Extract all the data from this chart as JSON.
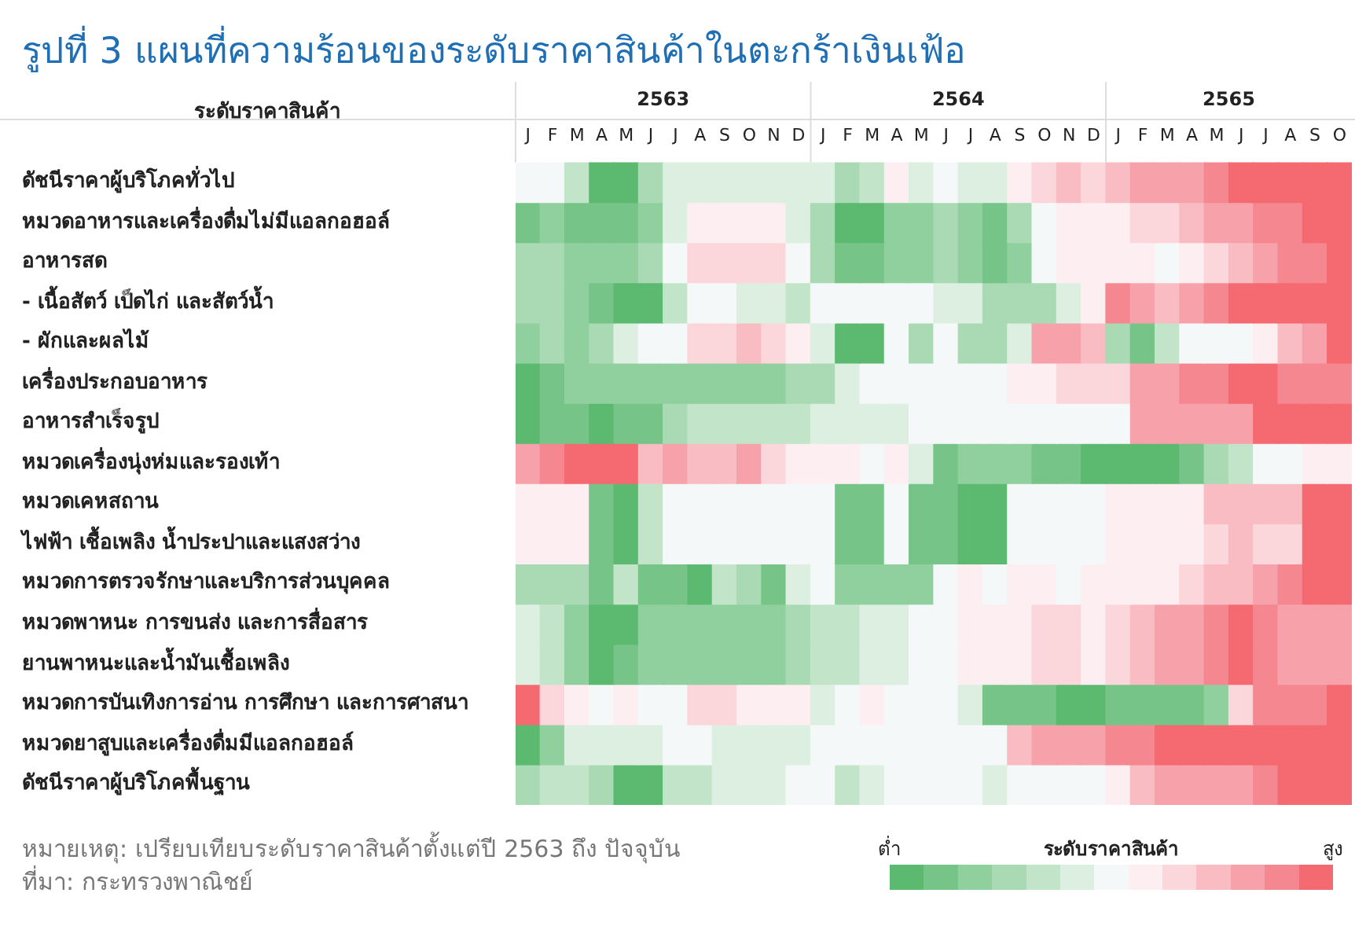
{
  "chart_data": {
    "type": "heatmap",
    "title": "รูปที่ 3 แผนที่ความร้อนของระดับราคาสินค้าในตะกร้าเงินเฟ้อ",
    "ylabel": "ระดับราคาสินค้า",
    "clabel": "ระดับราคาสินค้า",
    "annotations": [
      "2563",
      "2564",
      "2565",
      "หมายเหตุ: เปรียบเทียบระดับราคาสินค้าตั้งแต่ปี 2563 ถึง ปัจจุบัน",
      "ที่มา: กระทรวงพาณิชย์"
    ],
    "categories": [
      "J",
      "F",
      "M",
      "A",
      "M",
      "J",
      "J",
      "A",
      "S",
      "O",
      "N",
      "D",
      "J",
      "F",
      "M",
      "A",
      "M",
      "J",
      "J",
      "A",
      "S",
      "O",
      "N",
      "D",
      "J",
      "F",
      "M",
      "A",
      "M",
      "J",
      "J",
      "A",
      "S",
      "O"
    ],
    "y_categories": [
      "ดัชนีราคาผู้บริโภคทั่วไป",
      "หมวดอาหารและเครื่องดื่มไม่มีแอลกอฮอล์",
      "อาหารสด",
      "- เนื้อสัตว์ เป็ดไก่ และสัตว์น้ำ",
      "- ผักและผลไม้",
      "เครื่องประกอบอาหาร",
      "อาหารสำเร็จรูป",
      "หมวดเครื่องนุ่งห่มและรองเท้า",
      "หมวดเคหสถาน",
      "ไฟฟ้า เชื้อเพลิง น้ำประปาและแสงสว่าง",
      "หมวดการตรวจรักษาและบริการส่วนบุคคล",
      "หมวดพาหนะ การขนส่ง และการสื่อสาร",
      "ยานพาหนะและน้ำมันเชื้อเพลิง",
      "หมวดการบันเทิงการอ่าน การศึกษา และการศาสนา",
      "หมวดยาสูบและเครื่องดื่มมีแอลกอฮอล์",
      "ดัชนีราคาผู้บริโภคพื้นฐาน"
    ],
    "cells": [
      [
        6,
        6,
        4,
        0,
        0,
        3,
        5,
        5,
        5,
        5,
        5,
        5,
        5,
        3,
        4,
        7,
        5,
        6,
        5,
        5,
        7,
        8,
        9,
        8,
        9,
        10,
        10,
        10,
        11,
        12,
        12,
        12,
        12,
        12
      ],
      [
        1,
        2,
        1,
        1,
        1,
        2,
        5,
        7,
        7,
        7,
        7,
        5,
        3,
        0,
        0,
        2,
        2,
        3,
        2,
        1,
        3,
        6,
        7,
        7,
        7,
        8,
        8,
        9,
        10,
        10,
        11,
        11,
        12,
        12
      ],
      [
        3,
        3,
        2,
        2,
        2,
        3,
        6,
        8,
        8,
        8,
        8,
        6,
        3,
        1,
        1,
        2,
        2,
        3,
        2,
        1,
        2,
        6,
        7,
        7,
        7,
        7,
        6,
        7,
        8,
        9,
        10,
        11,
        11,
        12
      ],
      [
        3,
        3,
        2,
        1,
        0,
        0,
        4,
        6,
        6,
        5,
        5,
        4,
        6,
        6,
        6,
        6,
        6,
        5,
        5,
        3,
        3,
        3,
        5,
        7,
        11,
        10,
        9,
        10,
        11,
        12,
        12,
        12,
        12,
        12
      ],
      [
        2,
        3,
        2,
        3,
        5,
        6,
        6,
        8,
        8,
        9,
        8,
        7,
        5,
        0,
        0,
        6,
        3,
        6,
        3,
        3,
        5,
        10,
        10,
        9,
        3,
        1,
        4,
        6,
        6,
        6,
        7,
        9,
        10,
        12
      ],
      [
        0,
        1,
        2,
        2,
        2,
        2,
        2,
        2,
        2,
        2,
        2,
        3,
        3,
        5,
        6,
        6,
        6,
        6,
        6,
        6,
        7,
        7,
        8,
        8,
        8,
        10,
        10,
        11,
        11,
        12,
        12,
        11,
        11,
        11
      ],
      [
        0,
        1,
        1,
        0,
        1,
        1,
        3,
        4,
        4,
        4,
        4,
        4,
        5,
        5,
        5,
        5,
        6,
        6,
        6,
        6,
        6,
        6,
        6,
        6,
        6,
        10,
        10,
        10,
        10,
        10,
        12,
        12,
        12,
        12
      ],
      [
        10,
        11,
        12,
        12,
        12,
        9,
        10,
        9,
        9,
        10,
        8,
        7,
        7,
        7,
        6,
        7,
        5,
        1,
        2,
        2,
        2,
        1,
        1,
        0,
        0,
        0,
        0,
        1,
        3,
        4,
        6,
        6,
        7,
        7
      ],
      [
        7,
        7,
        7,
        1,
        0,
        4,
        6,
        6,
        6,
        6,
        6,
        6,
        6,
        1,
        1,
        6,
        1,
        1,
        0,
        0,
        6,
        6,
        6,
        6,
        7,
        7,
        7,
        7,
        9,
        9,
        9,
        9,
        12,
        12
      ],
      [
        7,
        7,
        7,
        1,
        0,
        4,
        6,
        6,
        6,
        6,
        6,
        6,
        6,
        1,
        1,
        6,
        1,
        1,
        0,
        0,
        6,
        6,
        6,
        6,
        7,
        7,
        7,
        7,
        8,
        9,
        8,
        8,
        12,
        12
      ],
      [
        3,
        3,
        3,
        1,
        4,
        1,
        1,
        0,
        4,
        3,
        1,
        5,
        6,
        2,
        2,
        2,
        2,
        6,
        7,
        6,
        7,
        7,
        6,
        7,
        7,
        7,
        7,
        8,
        9,
        9,
        10,
        11,
        12,
        12
      ],
      [
        5,
        4,
        2,
        0,
        0,
        2,
        2,
        2,
        2,
        2,
        2,
        3,
        4,
        4,
        5,
        5,
        6,
        6,
        7,
        7,
        7,
        8,
        8,
        7,
        8,
        9,
        10,
        10,
        11,
        12,
        11,
        10,
        10,
        10
      ],
      [
        5,
        4,
        2,
        0,
        1,
        2,
        2,
        2,
        2,
        2,
        2,
        3,
        4,
        4,
        5,
        5,
        6,
        6,
        7,
        7,
        7,
        8,
        8,
        7,
        8,
        9,
        10,
        10,
        11,
        12,
        11,
        10,
        10,
        10
      ],
      [
        12,
        8,
        7,
        6,
        7,
        6,
        6,
        8,
        8,
        7,
        7,
        7,
        5,
        6,
        7,
        6,
        6,
        6,
        5,
        1,
        1,
        1,
        0,
        0,
        1,
        1,
        1,
        1,
        2,
        8,
        11,
        11,
        11,
        12
      ],
      [
        0,
        2,
        5,
        5,
        5,
        5,
        6,
        6,
        5,
        5,
        5,
        5,
        6,
        6,
        6,
        6,
        6,
        6,
        6,
        6,
        9,
        10,
        10,
        10,
        11,
        11,
        12,
        12,
        12,
        12,
        12,
        12,
        12,
        12
      ],
      [
        3,
        4,
        4,
        3,
        0,
        0,
        4,
        4,
        5,
        5,
        5,
        6,
        6,
        4,
        5,
        6,
        6,
        6,
        6,
        5,
        6,
        6,
        6,
        6,
        7,
        9,
        10,
        10,
        10,
        10,
        11,
        12,
        12,
        12
      ]
    ],
    "colors": [
      "#5cb970",
      "#76c487",
      "#90cf9e",
      "#a9dab3",
      "#c2e5c9",
      "#dcefe0",
      "#f5f8f8",
      "#fdeef1",
      "#fbd6db",
      "#f9bcc3",
      "#f7a2aa",
      "#f58790",
      "#f46a70"
    ],
    "clim": [
      0,
      12
    ],
    "cticks": [
      {
        "value": 0,
        "label": "ต่ำ"
      },
      {
        "value": 12,
        "label": "สูง"
      }
    ]
  }
}
